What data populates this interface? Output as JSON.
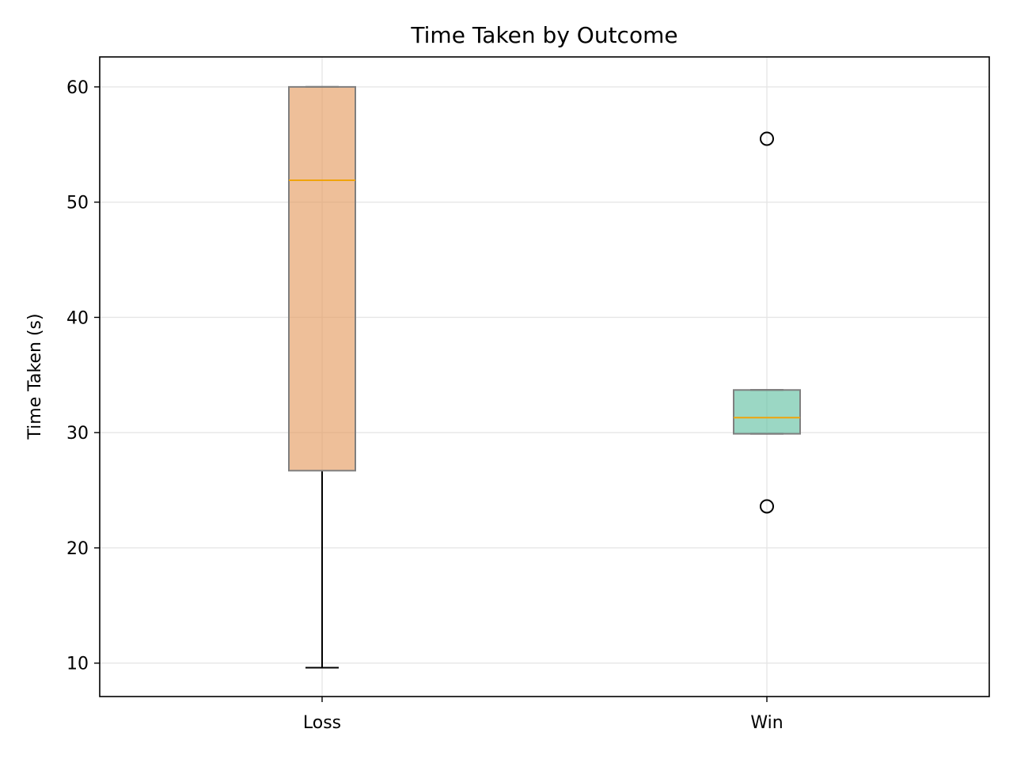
{
  "chart_data": {
    "type": "box",
    "title": "Time Taken by Outcome",
    "xlabel": "",
    "ylabel": "Time Taken (s)",
    "ylim": [
      7.1,
      62.6
    ],
    "yticks": [
      10,
      20,
      30,
      40,
      50,
      60
    ],
    "grid": true,
    "categories": [
      "Loss",
      "Win"
    ],
    "boxes": [
      {
        "category": "Loss",
        "whisker_low": 9.6,
        "q1": 26.7,
        "median": 51.9,
        "q3": 60.0,
        "whisker_high": 60.0,
        "outliers": [],
        "color": "#e59c63"
      },
      {
        "category": "Win",
        "whisker_low": 29.9,
        "q1": 29.9,
        "median": 31.3,
        "q3": 33.7,
        "whisker_high": 33.7,
        "outliers": [
          55.5,
          23.6
        ],
        "color": "#66c2a5"
      }
    ],
    "median_color": "#f0a30a"
  }
}
